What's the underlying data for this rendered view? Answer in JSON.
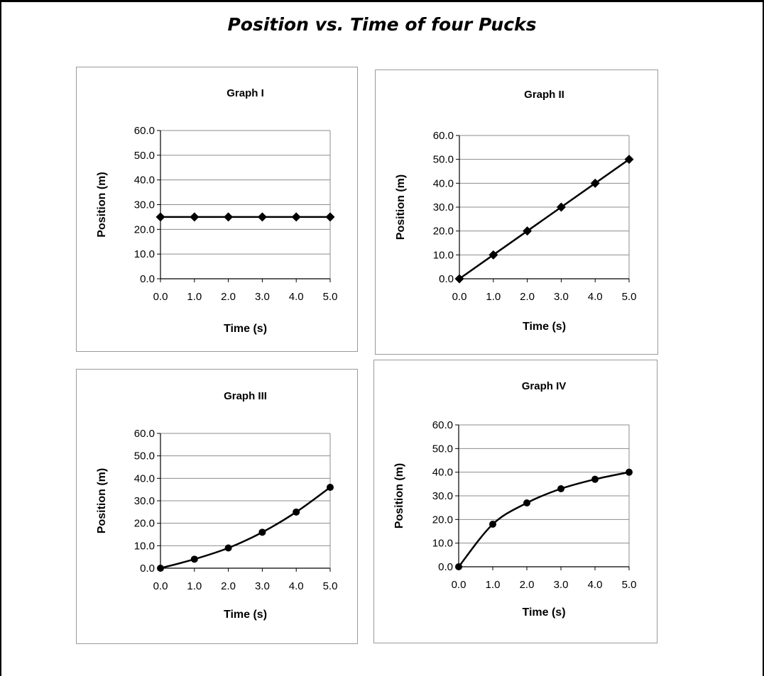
{
  "page": {
    "title": "Position vs. Time of four Pucks"
  },
  "chart_data": [
    {
      "type": "line",
      "title": "Graph I",
      "xlabel": "Time (s)",
      "ylabel": "Position (m)",
      "x": [
        0,
        1,
        2,
        3,
        4,
        5
      ],
      "y": [
        25,
        25,
        25,
        25,
        25,
        25
      ],
      "xticks": [
        "0.0",
        "1.0",
        "2.0",
        "3.0",
        "4.0",
        "5.0"
      ],
      "yticks": [
        "0.0",
        "10.0",
        "20.0",
        "30.0",
        "40.0",
        "50.0",
        "60.0"
      ],
      "xlim": [
        0,
        5
      ],
      "ylim": [
        0,
        60
      ],
      "grid": "horizontal",
      "marker": "diamond",
      "curve": "straight"
    },
    {
      "type": "line",
      "title": "Graph II",
      "xlabel": "Time (s)",
      "ylabel": "Position (m)",
      "x": [
        0,
        1,
        2,
        3,
        4,
        5
      ],
      "y": [
        0,
        10,
        20,
        30,
        40,
        50
      ],
      "xticks": [
        "0.0",
        "1.0",
        "2.0",
        "3.0",
        "4.0",
        "5.0"
      ],
      "yticks": [
        "0.0",
        "10.0",
        "20.0",
        "30.0",
        "40.0",
        "50.0",
        "60.0"
      ],
      "xlim": [
        0,
        5
      ],
      "ylim": [
        0,
        60
      ],
      "grid": "horizontal",
      "marker": "diamond",
      "curve": "straight"
    },
    {
      "type": "line",
      "title": "Graph III",
      "xlabel": "Time (s)",
      "ylabel": "Position (m)",
      "x": [
        0,
        1,
        2,
        3,
        4,
        5
      ],
      "y": [
        0,
        4,
        9,
        16,
        25,
        36
      ],
      "xticks": [
        "0.0",
        "1.0",
        "2.0",
        "3.0",
        "4.0",
        "5.0"
      ],
      "yticks": [
        "0.0",
        "10.0",
        "20.0",
        "30.0",
        "40.0",
        "50.0",
        "60.0"
      ],
      "xlim": [
        0,
        5
      ],
      "ylim": [
        0,
        60
      ],
      "grid": "horizontal",
      "marker": "circle",
      "curve": "smooth"
    },
    {
      "type": "line",
      "title": "Graph IV",
      "xlabel": "Time (s)",
      "ylabel": "Position  (m)",
      "x": [
        0,
        1,
        2,
        3,
        4,
        5
      ],
      "y": [
        0,
        18,
        27,
        33,
        37,
        40
      ],
      "xticks": [
        "0.0",
        "1.0",
        "2.0",
        "3.0",
        "4.0",
        "5.0"
      ],
      "yticks": [
        "0.0",
        "10.0",
        "20.0",
        "30.0",
        "40.0",
        "50.0",
        "60.0"
      ],
      "xlim": [
        0,
        5
      ],
      "ylim": [
        0,
        60
      ],
      "grid": "horizontal",
      "marker": "circle",
      "curve": "smooth"
    }
  ]
}
